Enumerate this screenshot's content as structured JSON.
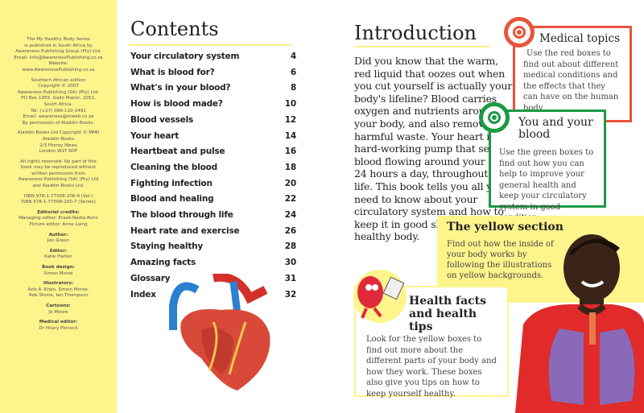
{
  "imprint": {
    "blocks": [
      [
        "The My Healthy Body Series",
        "is published in South Africa by",
        "Awareness Publishing Group (Pty) Ltd.",
        "Email: info@AwarenessPublishing.co.za",
        "Website:",
        "www.AwarenessPublishing.co.za"
      ],
      [
        "Southern African edition",
        "Copyright © 2007",
        "Awareness Publishing (SA) (Pty) Ltd.",
        "PO Box 1955, Gallo Manor, 2052,",
        "South Africa.",
        "Tel: (+27) 086-110-1491",
        "Email: awareness@mweb.co.za",
        "By permission of Aladdin Books."
      ],
      [
        "Aladdin Books Ltd Copyright © MMII",
        "Aladdin Books",
        "2/3 Fitzroy Mews",
        "London W1T 6DF"
      ],
      [
        "All rights reserved. No part of this",
        "book may be reproduced without",
        "written permission from",
        "Awareness Publishing (SA) (Pty) Ltd",
        "and Aladdin Books Ltd."
      ],
      [
        "ISBN 978-1-77008-206-9 (Vol.)",
        "ISBN 978-1-77008-200-7 (Series)"
      ]
    ],
    "credits": [
      {
        "heading": "Editorial credits:",
        "lines": [
          "Managing editor: Erazé-Nadia Bons",
          "Picture editor: Anne Laing"
        ]
      },
      {
        "heading": "Author:",
        "lines": [
          "Jen Green"
        ]
      },
      {
        "heading": "Editor:",
        "lines": [
          "Katie Harker"
        ]
      },
      {
        "heading": "Book design:",
        "lines": [
          "Simon Morse"
        ]
      },
      {
        "heading": "Illustrators:",
        "lines": [
          "Aziz A. Khan, Simon Morse,",
          "Rob Shone, Ian Thompson"
        ]
      },
      {
        "heading": "Cartoons:",
        "lines": [
          "Jo Moore"
        ]
      },
      {
        "heading": "Medical editor:",
        "lines": [
          "Dr Hilary Pinnock"
        ]
      }
    ]
  },
  "contents": {
    "title": "Contents",
    "items": [
      {
        "label": "Your circulatory system",
        "page": "4"
      },
      {
        "label": "What is blood for?",
        "page": "6"
      },
      {
        "label": "What's in your blood?",
        "page": "8"
      },
      {
        "label": "How is blood made?",
        "page": "10"
      },
      {
        "label": "Blood vessels",
        "page": "12"
      },
      {
        "label": "Your heart",
        "page": "14"
      },
      {
        "label": "Heartbeat and pulse",
        "page": "16"
      },
      {
        "label": "Cleaning the blood",
        "page": "18"
      },
      {
        "label": "Fighting infection",
        "page": "20"
      },
      {
        "label": "Blood and healing",
        "page": "22"
      },
      {
        "label": "The blood through life",
        "page": "24"
      },
      {
        "label": "Heart rate and exercise",
        "page": "26"
      },
      {
        "label": "Staying healthy",
        "page": "28"
      },
      {
        "label": "Amazing facts",
        "page": "30"
      },
      {
        "label": "Glossary",
        "page": "31"
      },
      {
        "label": "Index",
        "page": "32"
      }
    ]
  },
  "introduction": {
    "title": "Introduction",
    "body": "Did you know that the warm, red liquid that oozes out when you cut yourself is actually your body's lifeline? Blood carries oxygen and nutrients around your body, and also removes harmful waste. Your heart is a hard-working pump that sends blood flowing around your body 24 hours a day, throughout your life. This book tells you all you need to know about your circulatory system and how to keep it in good shape for a healthy body."
  },
  "boxes": {
    "medical": {
      "title": "Medical topics",
      "text": "Use the red boxes to find out about different medical conditions and the effects that they can have on the human body.",
      "color": "#e8533a"
    },
    "green": {
      "title": "You and your blood",
      "text": "Use the green boxes to find out how you can help to improve your general health and keep your circulatory system in good condition.",
      "color": "#1a9a44"
    },
    "yellow": {
      "title": "The yellow section",
      "text": "Find out how the inside of your body works by following the illustrations on yellow backgrounds.",
      "color": "#fdf48c"
    },
    "health": {
      "title": "Health facts and health tips",
      "text": "Look for the yellow boxes to find out more about the different parts of your body and how they work. These boxes also give you tips on how to keep yourself healthy."
    }
  }
}
